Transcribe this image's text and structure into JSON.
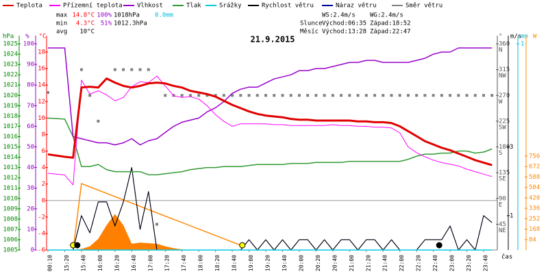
{
  "chart_data": {
    "type": "line",
    "title": "21.9.2015",
    "xlabel": "čas",
    "stats": [
      {
        "label": "max",
        "items": [
          {
            "text": "14.8°C",
            "color": "#ff0000"
          },
          {
            "text": "100%",
            "color": "#9900cc"
          },
          {
            "text": "1018hPa",
            "color": "#000000"
          },
          {
            "text": "0.0mm",
            "color": "#00bbdd"
          }
        ]
      },
      {
        "label": "min",
        "items": [
          {
            "text": "4.3°C",
            "color": "#ff0000"
          },
          {
            "text": "51%",
            "color": "#9900cc"
          },
          {
            "text": "1012.3hPa",
            "color": "#000000"
          }
        ]
      },
      {
        "label": "avg",
        "items": [
          {
            "text": "10°C",
            "color": "#000000"
          }
        ]
      }
    ],
    "info": [
      [
        "WS:2.4m/s",
        "WG:2.4m/s"
      ],
      [
        "Slunce",
        "Východ:06:35",
        "Západ:18:52"
      ],
      [
        "Měsíc",
        "Východ:13:28",
        "Západ:22:47"
      ]
    ],
    "categories": [
      "00:10",
      "15:20",
      "15:40",
      "16:00",
      "16:20",
      "16:40",
      "17:00",
      "17:20",
      "17:40",
      "18:00",
      "18:20",
      "18:40",
      "19:00",
      "19:20",
      "19:40",
      "20:00",
      "20:20",
      "20:40",
      "21:00",
      "21:20",
      "21:40",
      "22:00",
      "22:20",
      "22:40",
      "23:00",
      "23:20",
      "23:40"
    ],
    "x": [
      "00:10",
      "15:20",
      "15:30",
      "15:40",
      "15:50",
      "16:00",
      "16:10",
      "16:20",
      "16:30",
      "16:40",
      "16:50",
      "17:00",
      "17:10",
      "17:20",
      "17:30",
      "17:40",
      "17:50",
      "18:00",
      "18:10",
      "18:20",
      "18:30",
      "18:40",
      "18:50",
      "19:00",
      "19:10",
      "19:20",
      "19:30",
      "19:40",
      "19:50",
      "20:00",
      "20:10",
      "20:20",
      "20:30",
      "20:40",
      "20:50",
      "21:00",
      "21:10",
      "21:20",
      "21:30",
      "21:40",
      "21:50",
      "22:00",
      "22:10",
      "22:20",
      "22:30",
      "22:40",
      "22:50",
      "23:00",
      "23:10",
      "23:20",
      "23:30",
      "23:40",
      "23:50"
    ],
    "axes": [
      {
        "id": "press",
        "unit": "hPa",
        "color": "#008800",
        "ylim": [
          1005,
          1025
        ],
        "yticks": [
          1005,
          1006,
          1007,
          1008,
          1009,
          1010,
          1011,
          1012,
          1013,
          1014,
          1015,
          1016,
          1017,
          1018,
          1019,
          1020,
          1021,
          1022,
          1023,
          1024,
          1025
        ]
      },
      {
        "id": "hum",
        "unit": "%",
        "color": "#9900cc",
        "ylim": [
          0,
          100
        ],
        "yticks": [
          0,
          10,
          20,
          30,
          40,
          50,
          60,
          70,
          80,
          90,
          100
        ]
      },
      {
        "id": "temp",
        "unit": "°C",
        "color": "#ff0000",
        "ylim": [
          -6,
          19
        ],
        "yticks": [
          -6,
          -4,
          -2,
          0,
          2,
          4,
          6,
          8,
          10,
          12,
          14,
          16,
          18
        ]
      },
      {
        "id": "dir",
        "unit": "°",
        "color": "#555555",
        "ylim": [
          0,
          360
        ],
        "yticks": [
          {
            "value": 360,
            "label": "360",
            "sub": "N"
          },
          {
            "value": 315,
            "label": "315",
            "sub": "NW"
          },
          {
            "value": 270,
            "label": "270",
            "sub": "W"
          },
          {
            "value": 225,
            "label": "225",
            "sub": "SW"
          },
          {
            "value": 180,
            "label": "180",
            "sub": "S"
          },
          {
            "value": 135,
            "label": "135",
            "sub": "SE"
          },
          {
            "value": 90,
            "label": "90",
            "sub": "E"
          },
          {
            "value": 45,
            "label": "45",
            "sub": "NE"
          }
        ]
      },
      {
        "id": "wind",
        "unit": "m/s",
        "color": "#000000",
        "ylim": [
          0,
          6
        ],
        "yticks": [
          1,
          3
        ]
      },
      {
        "id": "rain",
        "unit": "mm",
        "color": "#00bbdd",
        "ylim": [
          0,
          1
        ],
        "yticks": [
          1
        ]
      },
      {
        "id": "solar",
        "unit": "W",
        "color": "#ff8800",
        "ylim": [
          0,
          1660
        ],
        "yticks": [
          84,
          168,
          252,
          336,
          420,
          504,
          588,
          672,
          756
        ]
      }
    ],
    "series": [
      {
        "name": "Teplota",
        "color": "#e00000",
        "style": "line",
        "width": 3,
        "axis": "temp",
        "values": [
          5.6,
          5.3,
          5.2,
          13.7,
          13.8,
          13.7,
          14.8,
          14.3,
          13.9,
          13.7,
          13.9,
          14.2,
          14.3,
          14.2,
          13.9,
          13.7,
          13.3,
          13.1,
          12.9,
          12.6,
          12.1,
          11.6,
          11.2,
          10.8,
          10.5,
          10.3,
          10.2,
          10.1,
          9.9,
          9.8,
          9.8,
          9.7,
          9.7,
          9.7,
          9.7,
          9.7,
          9.6,
          9.6,
          9.5,
          9.5,
          9.4,
          9.0,
          8.4,
          7.8,
          7.2,
          6.8,
          6.4,
          6.1,
          5.7,
          5.3,
          4.9,
          4.6,
          4.3
        ]
      },
      {
        "name": "Přízemní teplota",
        "color": "#ff00ff",
        "style": "line",
        "width": 1,
        "axis": "temp",
        "values": [
          3.3,
          3.1,
          1.9,
          14.6,
          12.9,
          13.3,
          12.8,
          12.1,
          12.5,
          13.8,
          14.4,
          14.3,
          15.1,
          13.9,
          12.7,
          12.5,
          12.6,
          12.3,
          11.5,
          10.4,
          9.6,
          9.0,
          9.3,
          9.3,
          9.3,
          9.3,
          9.2,
          9.2,
          9.1,
          9.1,
          9.1,
          9.1,
          9.1,
          9.2,
          9.1,
          9.1,
          9.0,
          9.0,
          8.9,
          8.9,
          8.8,
          8.2,
          6.5,
          5.8,
          5.3,
          4.9,
          4.6,
          4.4,
          4.2,
          3.8,
          3.5,
          3.2,
          2.9
        ]
      },
      {
        "name": "Vlhkost",
        "color": "#9900cc",
        "style": "line",
        "width": 1.5,
        "axis": "hum",
        "values": [
          98,
          98,
          55,
          54,
          53,
          52,
          52,
          51,
          52,
          54,
          51,
          53,
          54,
          57,
          60,
          62,
          63,
          64,
          67,
          69,
          72,
          76,
          78,
          79,
          79,
          81,
          83,
          84,
          85,
          87,
          87,
          88,
          88,
          89,
          90,
          91,
          91,
          92,
          92,
          91,
          91,
          91,
          91,
          92,
          93,
          95,
          96,
          96,
          98,
          98,
          98,
          98,
          98
        ]
      },
      {
        "name": "Tlak",
        "color": "#339933",
        "style": "line",
        "width": 1.5,
        "axis": "press",
        "values": [
          1017.8,
          1017.7,
          1016.0,
          1013.1,
          1013.1,
          1013.3,
          1012.8,
          1012.6,
          1012.6,
          1012.6,
          1012.6,
          1012.3,
          1012.3,
          1012.4,
          1012.5,
          1012.6,
          1012.8,
          1012.9,
          1013.0,
          1013.0,
          1013.1,
          1013.1,
          1013.1,
          1013.2,
          1013.3,
          1013.3,
          1013.3,
          1013.3,
          1013.4,
          1013.4,
          1013.4,
          1013.5,
          1013.5,
          1013.5,
          1013.5,
          1013.6,
          1013.6,
          1013.6,
          1013.6,
          1013.6,
          1013.6,
          1013.6,
          1013.8,
          1014.1,
          1014.3,
          1014.3,
          1014.4,
          1014.4,
          1014.6,
          1014.6,
          1014.4,
          1014.5,
          1014.8
        ]
      },
      {
        "name": "Srážky",
        "color": "#00ccdd",
        "style": "line",
        "width": 1.5,
        "axis": "rain",
        "values": [
          0,
          0,
          0,
          0,
          0,
          0,
          0,
          0,
          0,
          0,
          0,
          0,
          0,
          0,
          0,
          0,
          0,
          0,
          0,
          0,
          0,
          0,
          0,
          0,
          0,
          0,
          0,
          0,
          0,
          0,
          0,
          0,
          0,
          0,
          0,
          0,
          0,
          0,
          0,
          0,
          0,
          0,
          0,
          0,
          0,
          0,
          0,
          0,
          0,
          0,
          0,
          0,
          0
        ]
      },
      {
        "name": "Rychlost větru",
        "color": "#000000",
        "style": "line",
        "width": 1,
        "axis": "wind",
        "values": [
          0,
          0,
          0,
          1.0,
          0.5,
          1.4,
          1.4,
          0.7,
          1.4,
          2.4,
          0.6,
          1.7,
          0,
          0,
          0,
          0,
          0,
          0,
          0,
          0,
          0,
          0,
          0,
          0.3,
          0,
          0.3,
          0,
          0.3,
          0,
          0.3,
          0.3,
          0,
          0.3,
          0,
          0.3,
          0.3,
          0,
          0.3,
          0.3,
          0,
          0.3,
          0,
          0,
          0,
          0.3,
          0.3,
          0.3,
          0.7,
          0,
          0.3,
          0,
          1.0,
          0.8
        ]
      },
      {
        "name": "Náraz větru",
        "color": "#000099",
        "style": "line",
        "width": 1,
        "axis": "wind",
        "values": [
          0,
          0,
          0,
          1.0,
          0.5,
          1.4,
          1.4,
          0.7,
          1.4,
          2.4,
          0.6,
          1.7,
          0,
          0,
          0,
          0,
          0,
          0,
          0,
          0,
          0,
          0,
          0,
          0.3,
          0,
          0.3,
          0,
          0.3,
          0,
          0.3,
          0.3,
          0,
          0.3,
          0,
          0.3,
          0.3,
          0,
          0.3,
          0.3,
          0,
          0.3,
          0,
          0,
          0,
          0.3,
          0.3,
          0.3,
          0.7,
          0,
          0.3,
          0,
          1.0,
          0.8
        ]
      },
      {
        "name": "Směr větru",
        "color": "#808080",
        "style": "squares",
        "axis": "dir",
        "values": [
          275,
          null,
          null,
          315,
          270,
          225,
          null,
          315,
          315,
          315,
          315,
          315,
          45,
          270,
          270,
          270,
          270,
          270,
          270,
          270,
          270,
          270,
          270,
          270,
          270,
          270,
          270,
          270,
          270,
          270,
          270,
          270,
          270,
          270,
          270,
          270,
          270,
          270,
          270,
          270,
          270,
          270,
          270,
          270,
          270,
          270,
          270,
          270,
          270,
          270,
          270,
          270,
          270
        ]
      },
      {
        "color": "#ff8000",
        "style": "area",
        "axis": "solar",
        "values": [
          0,
          0,
          0,
          8,
          30,
          90,
          200,
          290,
          200,
          50,
          60,
          55,
          50,
          30,
          15,
          5,
          0,
          0,
          0,
          0,
          0,
          0,
          0,
          0,
          0,
          0,
          0,
          0,
          0,
          0,
          0,
          0,
          0,
          0,
          0,
          0,
          0,
          0,
          0,
          0,
          0,
          0,
          0,
          0,
          0,
          0,
          0,
          0,
          0,
          0,
          0,
          0,
          0
        ]
      },
      {
        "color": "#ff8800",
        "style": "line",
        "width": 1.5,
        "axis": "solar",
        "x": [
          "15:30",
          "15:40",
          "18:50"
        ],
        "values": [
          0,
          535,
          38
        ]
      }
    ],
    "markers": [
      {
        "x": "15:30",
        "color": "#ffff00"
      },
      {
        "x": "15:35",
        "color": "#000000"
      },
      {
        "x": "18:52",
        "color": "#ffff00"
      },
      {
        "x": "22:47",
        "color": "#000000"
      }
    ]
  }
}
